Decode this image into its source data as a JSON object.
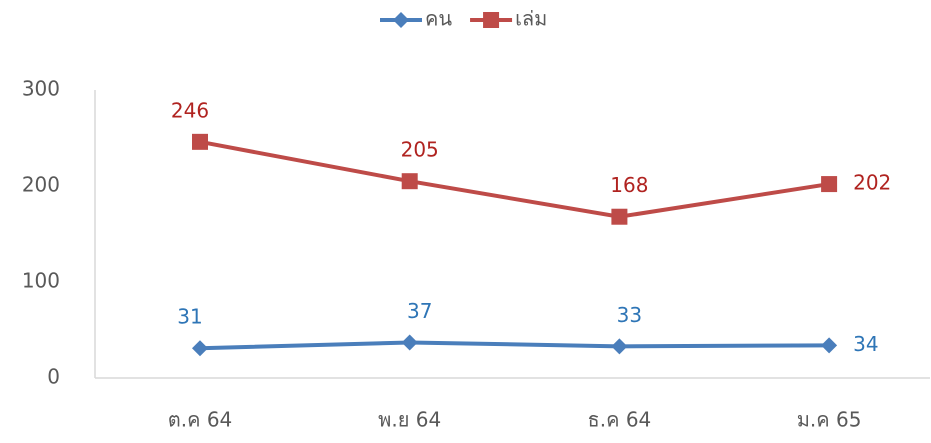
{
  "chart_data": {
    "type": "line",
    "categories": [
      "ต.ค 64",
      "พ.ย 64",
      "ธ.ค 64",
      "ม.ค 65"
    ],
    "series": [
      {
        "name": "คน",
        "color": "#4a7ebb",
        "marker": "diamond",
        "values": [
          31,
          37,
          33,
          34
        ]
      },
      {
        "name": "เล่ม",
        "color": "#be4b48",
        "marker": "square",
        "values": [
          246,
          205,
          168,
          202
        ]
      }
    ],
    "ylim": [
      0,
      300
    ],
    "yticks": [
      0,
      100,
      200,
      300
    ],
    "grid": false,
    "legend": "top"
  }
}
